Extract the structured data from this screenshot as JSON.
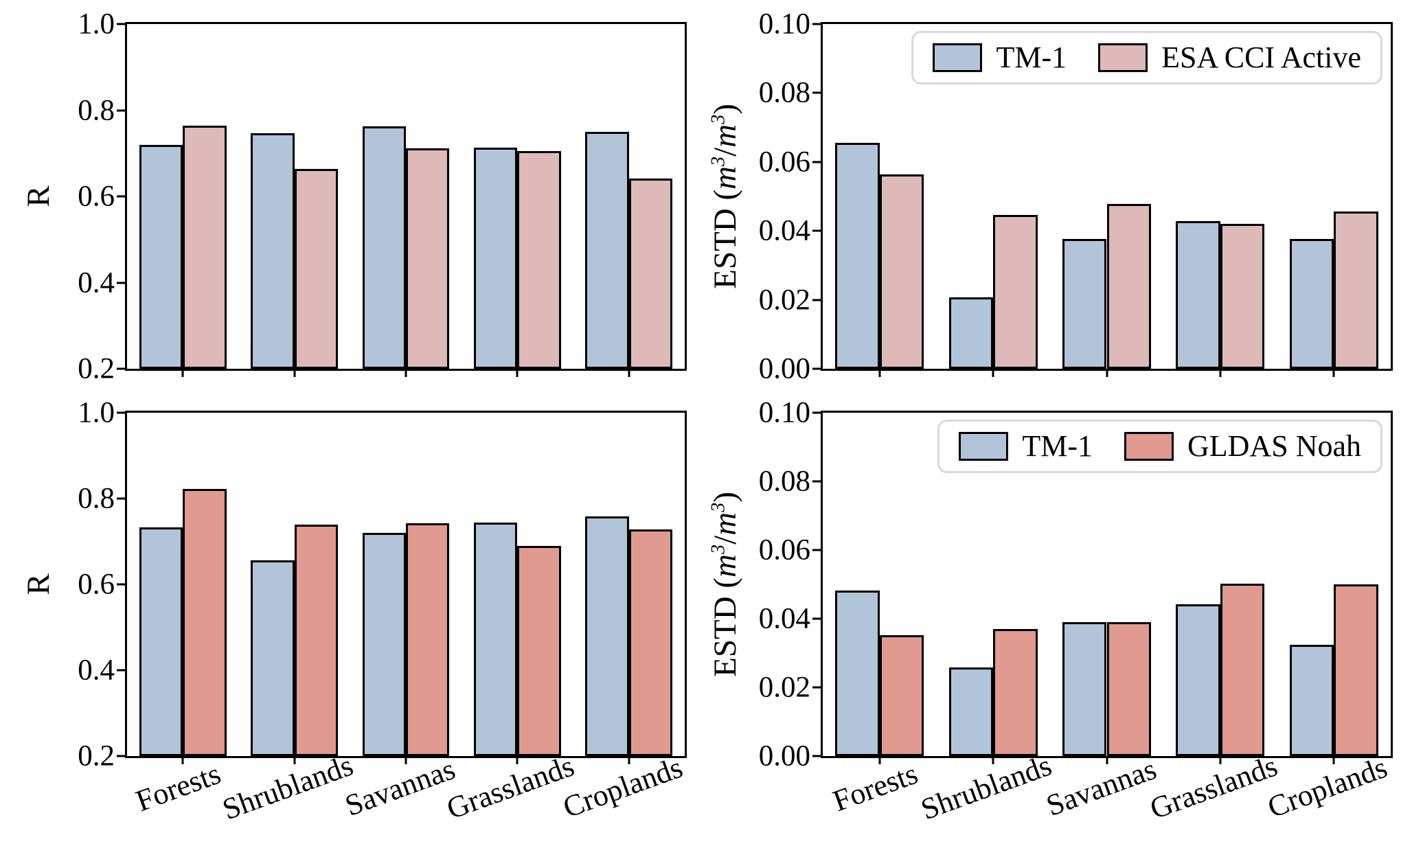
{
  "figure": {
    "r_label": "R",
    "estd_label": {
      "pre": "ESTD (",
      "m": "m",
      "exp": "3",
      "slash": "/",
      "post": ")"
    }
  },
  "chart_data": {
    "type": "bar",
    "layout": "2x2 grid, grouped bars, no gridlines, full box frame, ticks outward",
    "categories": [
      "Forests",
      "Shrublands",
      "Savannas",
      "Grasslands",
      "Croplands"
    ],
    "colors": {
      "tm1": "#B2C4D8",
      "esa": "#DEB9B9",
      "gldas": "#E09A90",
      "edge": "#000000"
    },
    "panels": [
      {
        "position": "top-left",
        "ylabel": "R",
        "ylim": [
          0.2,
          1.0
        ],
        "ytick_values": [
          0.2,
          0.4,
          0.6,
          0.8,
          1.0
        ],
        "ytick_labels": [
          "0.2",
          "0.4",
          "0.6",
          "0.8",
          "1.0"
        ],
        "legend": false,
        "show_xlabels": false,
        "series": [
          {
            "name": "TM-1",
            "color_key": "tm1",
            "values": [
              0.72,
              0.746,
              0.762,
              0.713,
              0.75
            ]
          },
          {
            "name": "ESA CCI Active",
            "color_key": "esa",
            "values": [
              0.764,
              0.663,
              0.711,
              0.705,
              0.642
            ]
          }
        ]
      },
      {
        "position": "top-right",
        "ylabel": "ESTD (m3/m3)",
        "ylim": [
          0.0,
          0.1
        ],
        "ytick_values": [
          0.0,
          0.02,
          0.04,
          0.06,
          0.08,
          0.1
        ],
        "ytick_labels": [
          "0.00",
          "0.02",
          "0.04",
          "0.06",
          "0.08",
          "0.10"
        ],
        "legend": true,
        "show_xlabels": false,
        "series": [
          {
            "name": "TM-1",
            "color_key": "tm1",
            "values": [
              0.0655,
              0.0207,
              0.0376,
              0.0428,
              0.0376
            ]
          },
          {
            "name": "ESA CCI Active",
            "color_key": "esa",
            "values": [
              0.0563,
              0.0447,
              0.0479,
              0.042,
              0.0457
            ]
          }
        ]
      },
      {
        "position": "bottom-left",
        "ylabel": "R",
        "ylim": [
          0.2,
          1.0
        ],
        "ytick_values": [
          0.2,
          0.4,
          0.6,
          0.8,
          1.0
        ],
        "ytick_labels": [
          "0.2",
          "0.4",
          "0.6",
          "0.8",
          "1.0"
        ],
        "legend": false,
        "show_xlabels": true,
        "series": [
          {
            "name": "TM-1",
            "color_key": "tm1",
            "values": [
              0.733,
              0.656,
              0.72,
              0.744,
              0.758
            ]
          },
          {
            "name": "GLDAS Noah",
            "color_key": "gldas",
            "values": [
              0.822,
              0.74,
              0.743,
              0.689,
              0.728
            ]
          }
        ]
      },
      {
        "position": "bottom-right",
        "ylabel": "ESTD (m3/m3)",
        "ylim": [
          0.0,
          0.1
        ],
        "ytick_values": [
          0.0,
          0.02,
          0.04,
          0.06,
          0.08,
          0.1
        ],
        "ytick_labels": [
          "0.00",
          "0.02",
          "0.04",
          "0.06",
          "0.08",
          "0.10"
        ],
        "legend": true,
        "show_xlabels": true,
        "series": [
          {
            "name": "TM-1",
            "color_key": "tm1",
            "values": [
              0.0482,
              0.0258,
              0.039,
              0.0443,
              0.0325
            ]
          },
          {
            "name": "GLDAS Noah",
            "color_key": "gldas",
            "values": [
              0.0353,
              0.0371,
              0.039,
              0.0503,
              0.0501
            ]
          }
        ]
      }
    ]
  }
}
